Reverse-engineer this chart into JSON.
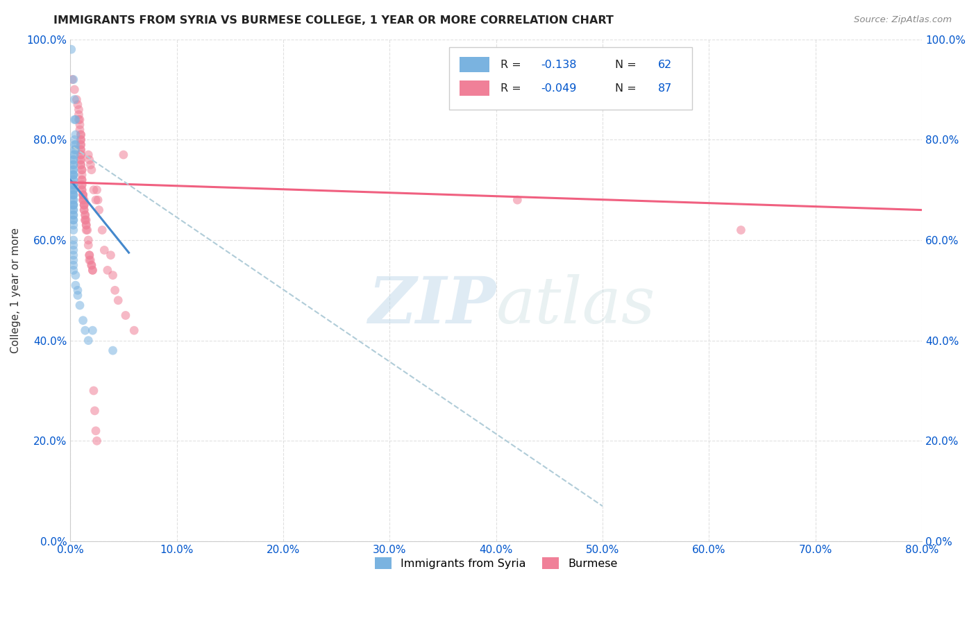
{
  "title": "IMMIGRANTS FROM SYRIA VS BURMESE COLLEGE, 1 YEAR OR MORE CORRELATION CHART",
  "source": "Source: ZipAtlas.com",
  "xlim": [
    0.0,
    0.8
  ],
  "ylim": [
    0.0,
    1.0
  ],
  "x_tick_vals": [
    0.0,
    0.1,
    0.2,
    0.3,
    0.4,
    0.5,
    0.6,
    0.7,
    0.8
  ],
  "y_tick_vals": [
    0.0,
    0.2,
    0.4,
    0.6,
    0.8,
    1.0
  ],
  "legend_label1": "Immigrants from Syria",
  "legend_label2": "Burmese",
  "syria_color": "#7ab3e0",
  "burmese_color": "#f08098",
  "syria_line_color": "#4488cc",
  "burmese_line_color": "#f06080",
  "dashed_line_color": "#b0ccd8",
  "watermark_zip": "ZIP",
  "watermark_atlas": "atlas",
  "background_color": "#ffffff",
  "grid_color": "#dddddd",
  "syria_scatter": [
    [
      0.001,
      0.98
    ],
    [
      0.003,
      0.92
    ],
    [
      0.004,
      0.88
    ],
    [
      0.005,
      0.84
    ],
    [
      0.004,
      0.84
    ],
    [
      0.005,
      0.81
    ],
    [
      0.004,
      0.8
    ],
    [
      0.005,
      0.79
    ],
    [
      0.004,
      0.79
    ],
    [
      0.005,
      0.78
    ],
    [
      0.004,
      0.78
    ],
    [
      0.004,
      0.77
    ],
    [
      0.003,
      0.77
    ],
    [
      0.003,
      0.76
    ],
    [
      0.003,
      0.76
    ],
    [
      0.003,
      0.75
    ],
    [
      0.003,
      0.75
    ],
    [
      0.003,
      0.74
    ],
    [
      0.003,
      0.74
    ],
    [
      0.003,
      0.73
    ],
    [
      0.003,
      0.73
    ],
    [
      0.003,
      0.73
    ],
    [
      0.003,
      0.72
    ],
    [
      0.003,
      0.72
    ],
    [
      0.003,
      0.71
    ],
    [
      0.003,
      0.71
    ],
    [
      0.003,
      0.71
    ],
    [
      0.003,
      0.7
    ],
    [
      0.003,
      0.7
    ],
    [
      0.003,
      0.7
    ],
    [
      0.003,
      0.69
    ],
    [
      0.003,
      0.69
    ],
    [
      0.003,
      0.69
    ],
    [
      0.003,
      0.68
    ],
    [
      0.003,
      0.68
    ],
    [
      0.003,
      0.67
    ],
    [
      0.003,
      0.67
    ],
    [
      0.003,
      0.67
    ],
    [
      0.003,
      0.66
    ],
    [
      0.003,
      0.66
    ],
    [
      0.003,
      0.65
    ],
    [
      0.003,
      0.65
    ],
    [
      0.003,
      0.64
    ],
    [
      0.003,
      0.64
    ],
    [
      0.003,
      0.63
    ],
    [
      0.003,
      0.62
    ],
    [
      0.003,
      0.6
    ],
    [
      0.003,
      0.59
    ],
    [
      0.003,
      0.58
    ],
    [
      0.003,
      0.57
    ],
    [
      0.003,
      0.56
    ],
    [
      0.003,
      0.55
    ],
    [
      0.003,
      0.54
    ],
    [
      0.005,
      0.53
    ],
    [
      0.005,
      0.51
    ],
    [
      0.007,
      0.5
    ],
    [
      0.007,
      0.49
    ],
    [
      0.009,
      0.47
    ],
    [
      0.012,
      0.44
    ],
    [
      0.014,
      0.42
    ],
    [
      0.017,
      0.4
    ],
    [
      0.021,
      0.42
    ],
    [
      0.04,
      0.38
    ]
  ],
  "burmese_scatter": [
    [
      0.002,
      0.92
    ],
    [
      0.004,
      0.9
    ],
    [
      0.006,
      0.88
    ],
    [
      0.007,
      0.87
    ],
    [
      0.008,
      0.86
    ],
    [
      0.008,
      0.85
    ],
    [
      0.008,
      0.84
    ],
    [
      0.009,
      0.84
    ],
    [
      0.009,
      0.83
    ],
    [
      0.009,
      0.82
    ],
    [
      0.01,
      0.81
    ],
    [
      0.01,
      0.81
    ],
    [
      0.01,
      0.8
    ],
    [
      0.01,
      0.8
    ],
    [
      0.01,
      0.79
    ],
    [
      0.01,
      0.79
    ],
    [
      0.01,
      0.78
    ],
    [
      0.01,
      0.78
    ],
    [
      0.01,
      0.77
    ],
    [
      0.01,
      0.77
    ],
    [
      0.01,
      0.76
    ],
    [
      0.01,
      0.76
    ],
    [
      0.01,
      0.75
    ],
    [
      0.01,
      0.75
    ],
    [
      0.011,
      0.74
    ],
    [
      0.011,
      0.74
    ],
    [
      0.011,
      0.73
    ],
    [
      0.011,
      0.72
    ],
    [
      0.011,
      0.72
    ],
    [
      0.011,
      0.71
    ],
    [
      0.011,
      0.71
    ],
    [
      0.011,
      0.7
    ],
    [
      0.011,
      0.7
    ],
    [
      0.012,
      0.69
    ],
    [
      0.012,
      0.69
    ],
    [
      0.012,
      0.69
    ],
    [
      0.012,
      0.68
    ],
    [
      0.012,
      0.68
    ],
    [
      0.013,
      0.68
    ],
    [
      0.013,
      0.67
    ],
    [
      0.013,
      0.67
    ],
    [
      0.013,
      0.67
    ],
    [
      0.013,
      0.66
    ],
    [
      0.013,
      0.66
    ],
    [
      0.014,
      0.65
    ],
    [
      0.014,
      0.65
    ],
    [
      0.014,
      0.64
    ],
    [
      0.014,
      0.64
    ],
    [
      0.015,
      0.64
    ],
    [
      0.015,
      0.63
    ],
    [
      0.015,
      0.63
    ],
    [
      0.015,
      0.62
    ],
    [
      0.016,
      0.62
    ],
    [
      0.017,
      0.6
    ],
    [
      0.017,
      0.59
    ],
    [
      0.018,
      0.57
    ],
    [
      0.018,
      0.57
    ],
    [
      0.018,
      0.56
    ],
    [
      0.019,
      0.56
    ],
    [
      0.02,
      0.55
    ],
    [
      0.02,
      0.55
    ],
    [
      0.021,
      0.54
    ],
    [
      0.021,
      0.54
    ],
    [
      0.022,
      0.3
    ],
    [
      0.023,
      0.26
    ],
    [
      0.024,
      0.22
    ],
    [
      0.025,
      0.2
    ],
    [
      0.017,
      0.77
    ],
    [
      0.018,
      0.76
    ],
    [
      0.019,
      0.75
    ],
    [
      0.02,
      0.74
    ],
    [
      0.022,
      0.7
    ],
    [
      0.024,
      0.68
    ],
    [
      0.025,
      0.7
    ],
    [
      0.026,
      0.68
    ],
    [
      0.027,
      0.66
    ],
    [
      0.03,
      0.62
    ],
    [
      0.032,
      0.58
    ],
    [
      0.035,
      0.54
    ],
    [
      0.038,
      0.57
    ],
    [
      0.04,
      0.53
    ],
    [
      0.042,
      0.5
    ],
    [
      0.045,
      0.48
    ],
    [
      0.05,
      0.77
    ],
    [
      0.052,
      0.45
    ],
    [
      0.06,
      0.42
    ],
    [
      0.42,
      0.68
    ],
    [
      0.63,
      0.62
    ]
  ],
  "syria_trendline": [
    [
      0.0,
      0.72
    ],
    [
      0.055,
      0.575
    ]
  ],
  "burmese_trendline": [
    [
      0.0,
      0.715
    ],
    [
      0.8,
      0.66
    ]
  ],
  "dashed_trendline": [
    [
      0.003,
      0.785
    ],
    [
      0.5,
      0.07
    ]
  ]
}
